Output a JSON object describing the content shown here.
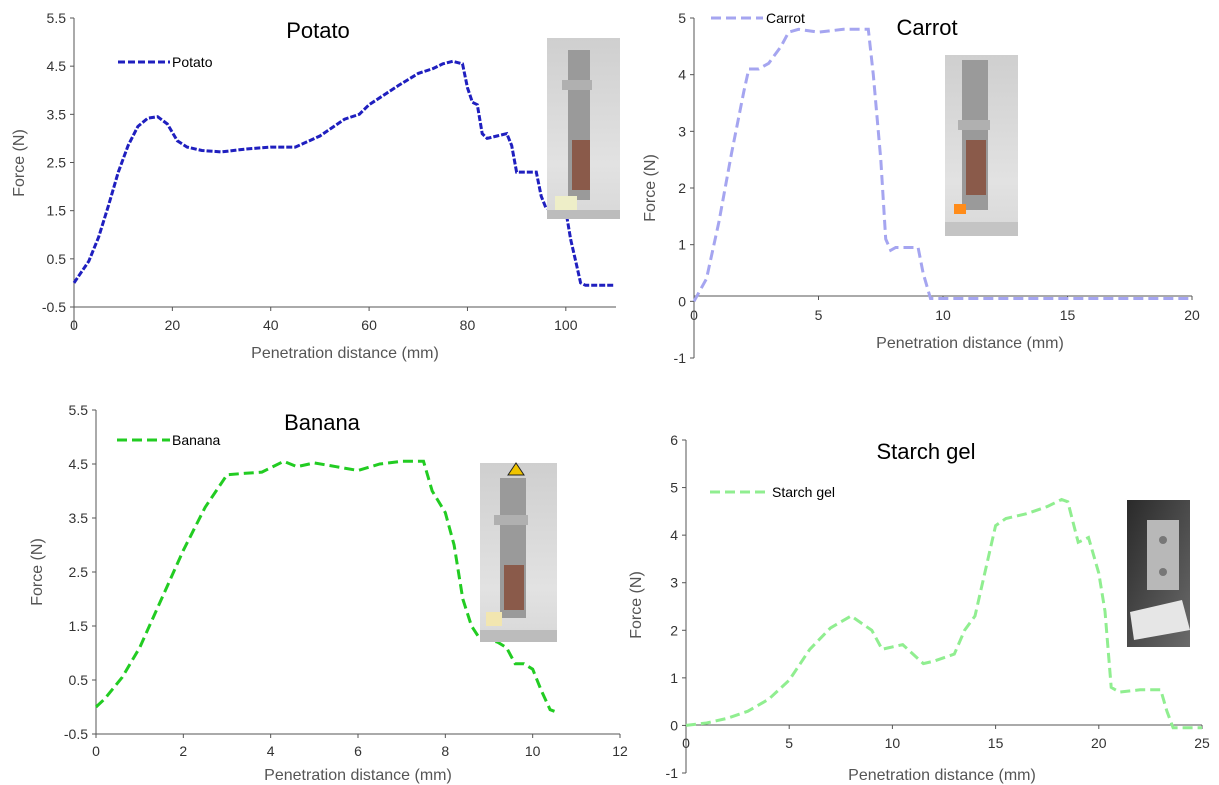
{
  "chart_data": [
    {
      "id": "potato",
      "type": "line",
      "title": "Potato",
      "xlabel": "Penetration distance (mm)",
      "ylabel": "Force (N)",
      "xlim": [
        0,
        110
      ],
      "ylim": [
        -0.5,
        5.5
      ],
      "xticks": [
        0,
        20,
        40,
        60,
        80,
        100
      ],
      "xtick_labels": [
        "0",
        "20",
        "40",
        "60",
        "80",
        "100"
      ],
      "yticks": [
        -0.5,
        0.5,
        1.5,
        2.5,
        3.5,
        4.5,
        5.5
      ],
      "ytick_labels": [
        "-0.5",
        "0.5",
        "1.5",
        "2.5",
        "3.5",
        "4.5",
        "5.5"
      ],
      "grid": false,
      "legend": "top-left",
      "color": "#1f1fbf",
      "series": [
        {
          "name": "Potato",
          "x": [
            0,
            1,
            3,
            5,
            7,
            9,
            11,
            13,
            15,
            17,
            19,
            21,
            23,
            26,
            30,
            35,
            40,
            45,
            50,
            55,
            58,
            60,
            63,
            66,
            70,
            73,
            75,
            77,
            79,
            80,
            81,
            82,
            83,
            84,
            86,
            88,
            89,
            90,
            92,
            94,
            95,
            96,
            98,
            100,
            101,
            102,
            103,
            104,
            110
          ],
          "y": [
            0,
            0.15,
            0.45,
            0.95,
            1.6,
            2.3,
            2.85,
            3.25,
            3.42,
            3.45,
            3.3,
            2.95,
            2.82,
            2.75,
            2.72,
            2.78,
            2.82,
            2.82,
            3.05,
            3.4,
            3.5,
            3.7,
            3.9,
            4.1,
            4.35,
            4.45,
            4.55,
            4.6,
            4.55,
            4.05,
            3.75,
            3.7,
            3.1,
            3.0,
            3.05,
            3.1,
            2.85,
            2.3,
            2.3,
            2.3,
            1.8,
            1.55,
            1.5,
            1.5,
            0.9,
            0.45,
            0.0,
            -0.05,
            -0.05
          ]
        }
      ]
    },
    {
      "id": "carrot",
      "type": "line",
      "title": "Carrot",
      "xlabel": "Penetration distance (mm)",
      "ylabel": "Force (N)",
      "xlim": [
        0,
        20
      ],
      "ylim": [
        -1,
        5
      ],
      "xticks": [
        0,
        5,
        10,
        15,
        20
      ],
      "xtick_labels": [
        "0",
        "5",
        "10",
        "15",
        "20"
      ],
      "yticks": [
        -1,
        0,
        1,
        2,
        3,
        4,
        5
      ],
      "ytick_labels": [
        "-1",
        "0",
        "1",
        "2",
        "3",
        "4",
        "5"
      ],
      "grid": false,
      "legend": "top-left",
      "color": "#a5a5f0",
      "series": [
        {
          "name": "Carrot",
          "x": [
            0,
            0.5,
            1.0,
            1.5,
            2.0,
            2.2,
            2.6,
            3.0,
            3.5,
            3.8,
            4.2,
            5.0,
            6.0,
            7.0,
            7.2,
            7.5,
            7.7,
            7.9,
            8.1,
            8.5,
            9.0,
            9.2,
            9.5,
            10,
            15,
            20
          ],
          "y": [
            0,
            0.4,
            1.4,
            2.6,
            3.7,
            4.1,
            4.1,
            4.2,
            4.5,
            4.75,
            4.8,
            4.75,
            4.8,
            4.8,
            4.0,
            2.5,
            1.1,
            0.9,
            0.95,
            0.95,
            0.95,
            0.5,
            0.05,
            0.05,
            0.05,
            0.05
          ]
        }
      ]
    },
    {
      "id": "banana",
      "type": "line",
      "title": "Banana",
      "xlabel": "Penetration distance (mm)",
      "ylabel": "Force (N)",
      "xlim": [
        0,
        12
      ],
      "ylim": [
        -0.5,
        5.5
      ],
      "xticks": [
        0,
        2,
        4,
        6,
        8,
        10,
        12
      ],
      "xtick_labels": [
        "0",
        "2",
        "4",
        "6",
        "8",
        "10",
        "12"
      ],
      "yticks": [
        -0.5,
        0.5,
        1.5,
        2.5,
        3.5,
        4.5,
        5.5
      ],
      "ytick_labels": [
        "-0.5",
        "0.5",
        "1.5",
        "2.5",
        "3.5",
        "4.5",
        "5.5"
      ],
      "grid": false,
      "legend": "top-left",
      "color": "#22cc22",
      "series": [
        {
          "name": "Banana",
          "x": [
            0,
            0.2,
            0.6,
            1.0,
            1.5,
            2.0,
            2.5,
            3.0,
            3.3,
            3.8,
            4.3,
            4.6,
            5.0,
            5.5,
            6.0,
            6.5,
            7.0,
            7.5,
            7.7,
            8.0,
            8.2,
            8.4,
            8.6,
            8.8,
            9.0,
            9.2,
            9.4,
            9.6,
            9.8,
            10.0,
            10.2,
            10.4,
            10.5
          ],
          "y": [
            0,
            0.15,
            0.55,
            1.1,
            2.0,
            2.9,
            3.7,
            4.3,
            4.32,
            4.35,
            4.55,
            4.45,
            4.52,
            4.45,
            4.38,
            4.5,
            4.55,
            4.55,
            4.0,
            3.6,
            3.0,
            2.0,
            1.5,
            1.25,
            1.25,
            1.2,
            1.1,
            0.8,
            0.8,
            0.7,
            0.3,
            -0.05,
            -0.08
          ]
        }
      ]
    },
    {
      "id": "starch-gel",
      "type": "line",
      "title": "Starch gel",
      "xlabel": "Penetration distance (mm)",
      "ylabel": "Force (N)",
      "xlim": [
        0,
        25
      ],
      "ylim": [
        -1,
        6
      ],
      "xticks": [
        0,
        5,
        10,
        15,
        20,
        25
      ],
      "xtick_labels": [
        "0",
        "5",
        "10",
        "15",
        "20",
        "25"
      ],
      "yticks": [
        -1,
        0,
        1,
        2,
        3,
        4,
        5,
        6
      ],
      "ytick_labels": [
        "-1",
        "0",
        "1",
        "2",
        "3",
        "4",
        "5",
        "6"
      ],
      "grid": false,
      "legend": "top-left",
      "color": "#90ee90",
      "series": [
        {
          "name": "Starch gel",
          "x": [
            0,
            1,
            2,
            3,
            4,
            5,
            6,
            7,
            8,
            9,
            9.5,
            10,
            10.5,
            11,
            11.5,
            12,
            13,
            13.5,
            14,
            15,
            15.5,
            16.5,
            17.5,
            18.2,
            18.5,
            19.0,
            19.5,
            20.0,
            20.3,
            20.6,
            21,
            22,
            23,
            23.3,
            23.6,
            25
          ],
          "y": [
            0,
            0.05,
            0.15,
            0.3,
            0.55,
            0.95,
            1.6,
            2.05,
            2.3,
            2.0,
            1.6,
            1.65,
            1.7,
            1.5,
            1.3,
            1.35,
            1.5,
            2.0,
            2.3,
            4.2,
            4.35,
            4.45,
            4.6,
            4.75,
            4.7,
            3.85,
            3.95,
            3.2,
            2.4,
            0.8,
            0.7,
            0.75,
            0.75,
            0.3,
            -0.05,
            -0.05
          ]
        }
      ]
    }
  ]
}
